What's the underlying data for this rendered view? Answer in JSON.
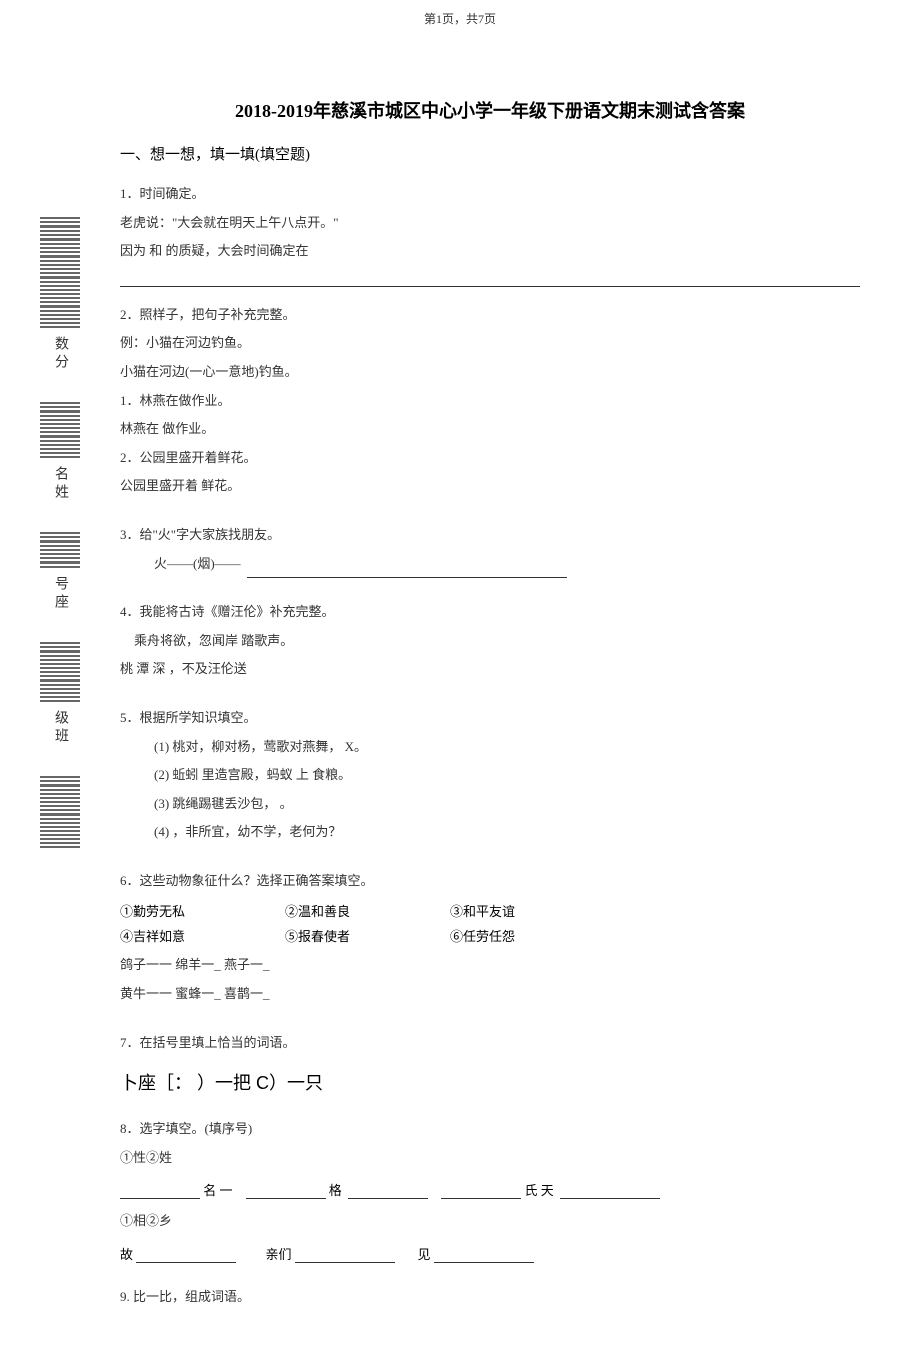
{
  "pageNumber": "第1页，共7页",
  "title": "2018-2019年慈溪市城区中心小学一年级下册语文期末测试含答案",
  "sectionHeading": "一、想一想，填一填(填空题)",
  "sidebar": {
    "labels": [
      "数分",
      "名姓",
      "号座",
      "级班"
    ]
  },
  "q1": {
    "num": "1",
    "title": "．时间确定。",
    "line1": "老虎说：\"大会就在明天上午八点开。\"",
    "line2": "因为 和 的质疑，大会时间确定在"
  },
  "q2": {
    "num": "2",
    "title": "．照样子，把句子补充完整。",
    "example1": "例：小猫在河边钓鱼。",
    "example2": "小猫在河边(一心一意地)钓鱼。",
    "sub1num": "1",
    "sub1": "．林燕在做作业。",
    "sub1fill": "林燕在 做作业。",
    "sub2num": "2",
    "sub2": "．公园里盛开着鲜花。",
    "sub2fill": "公园里盛开着 鲜花。"
  },
  "q3": {
    "num": "3",
    "title": "．给\"火\"字大家族找朋友。",
    "line": "火——(烟)——"
  },
  "q4": {
    "num": "4",
    "title": "．我能将古诗《赠汪伦》补充完整。",
    "line1": "乘舟将欲，忽闻岸 踏歌声。",
    "line2": "桃 潭 深 ，不及汪伦送"
  },
  "q5": {
    "num": "5",
    "title": "．根据所学知识填空。",
    "sub1": "(1) 桃对，柳对杨，莺歌对燕舞， X。",
    "sub2": "(2) 蚯蚓 里造宫殿，蚂蚁 上 食粮。",
    "sub3": "(3) 跳绳踢毽丢沙包，  。",
    "sub4": "(4)  ，非所宜，幼不学，老何为？"
  },
  "q6": {
    "num": "6",
    "title": "．这些动物象征什么？选择正确答案填空。",
    "opt1": "①勤劳无私",
    "opt2": "②温和善良",
    "opt3": "③和平友谊",
    "opt4": "④吉祥如意",
    "opt5": "⑤报春使者",
    "opt6": "⑥任劳任怨",
    "animals1": "鸽子一一 绵羊一_ 燕子一_",
    "animals2": "黄牛一一 蜜蜂一_ 喜鹊一_"
  },
  "q7": {
    "num": "7",
    "title": "．在括号里填上恰当的词语。",
    "special": "卜座［：         ）一把 C）一只"
  },
  "q8": {
    "num": "8",
    "title": "．选字填空。(填序号)",
    "choice1": "①性②姓",
    "fill1a": "名 一",
    "fill1b": "格",
    "fill1c": "氏 天",
    "choice2": "①相②乡",
    "fill2a": "故",
    "fill2b": "亲们",
    "fill2c": "见"
  },
  "q9": {
    "num": "9.",
    "title": "比一比，组成词语。"
  }
}
